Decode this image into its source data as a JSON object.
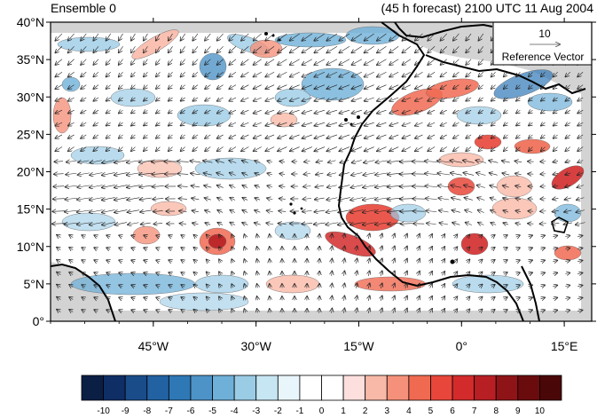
{
  "title_left": "Ensemble 0",
  "title_right": "(45 h forecast) 2100 UTC 11 Aug 2004",
  "lat_labels": [
    "40°N",
    "35°N",
    "30°N",
    "25°N",
    "20°N",
    "15°N",
    "10°N",
    "5°N",
    "0°"
  ],
  "lon_labels": [
    "45°W",
    "30°W",
    "15°W",
    "0°",
    "15°E"
  ],
  "reference_vector": {
    "magnitude": "10",
    "label": "Reference Vector"
  },
  "colorbar": {
    "labels": [
      "-10",
      "-9",
      "-8",
      "-7",
      "-6",
      "-5",
      "-4",
      "-3",
      "-2",
      "-1",
      "0",
      "1",
      "2",
      "3",
      "4",
      "5",
      "6",
      "7",
      "8",
      "9",
      "10"
    ],
    "colors": [
      "#0b1f45",
      "#0f2e66",
      "#1a4c8a",
      "#2262a3",
      "#2f78b6",
      "#4d93c7",
      "#6fb0d8",
      "#9bcce6",
      "#c7e6f3",
      "#e8f6fb",
      "#ffffff",
      "#ffffff",
      "#fde0dd",
      "#f9b9a8",
      "#f5917a",
      "#f06a52",
      "#e8463a",
      "#d32b2b",
      "#b71f24",
      "#8f1418",
      "#6a0c0e",
      "#4a0707"
    ]
  },
  "colors": {
    "land_mask": "#d3d3d3",
    "negative": "#2f78b6",
    "positive": "#d32b2b",
    "coast": "#000000"
  },
  "map": {
    "lat_range": [
      0,
      40
    ],
    "lon_range": [
      -60,
      19
    ]
  }
}
